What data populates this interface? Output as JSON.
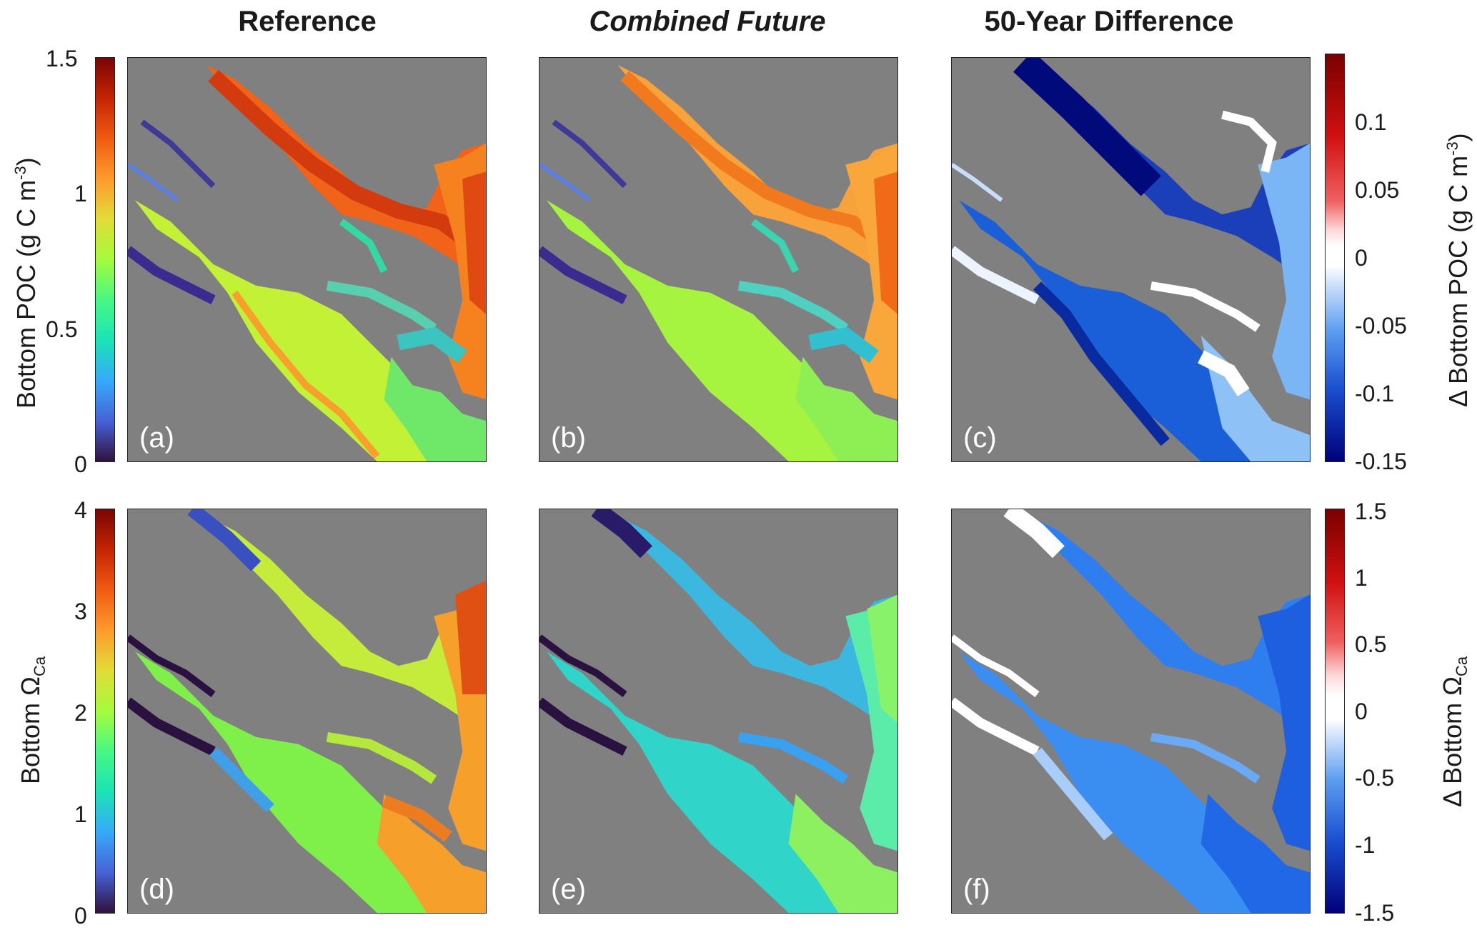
{
  "columns": {
    "reference": "Reference",
    "combined_future": "Combined Future",
    "difference": "50-Year Difference"
  },
  "panels": {
    "a": "(a)",
    "b": "(b)",
    "c": "(c)",
    "d": "(d)",
    "e": "(e)",
    "f": "(f)"
  },
  "row1": {
    "ylabel_left": {
      "main": "Bottom POC (g C m",
      "sup": "-3",
      "tail": ")"
    },
    "ylabel_right": {
      "main": "Δ Bottom POC (g C m",
      "sup": "-3",
      "tail": ")"
    },
    "ticks_left": [
      "1.5",
      "1",
      "0.5",
      "0"
    ],
    "ticks_right": [
      "0.1",
      "0.05",
      "0",
      "-0.05",
      "-0.1",
      "-0.15"
    ]
  },
  "row2": {
    "ylabel_left": {
      "main": "Bottom Ω",
      "sub": "Ca"
    },
    "ylabel_right": {
      "main": "Δ Bottom Ω",
      "sub": "Ca"
    },
    "ticks_left": [
      "4",
      "3",
      "2",
      "1",
      "0"
    ],
    "ticks_right": [
      "1.5",
      "1",
      "0.5",
      "0",
      "-0.5",
      "-1",
      "-1.5"
    ]
  },
  "colors": {
    "land": "#808080",
    "jet_top": "#7a0403",
    "jet_bottom": "#30123b",
    "div_top": "#7a0000",
    "div_mid": "#ffffff",
    "div_bottom": "#00007a"
  }
}
